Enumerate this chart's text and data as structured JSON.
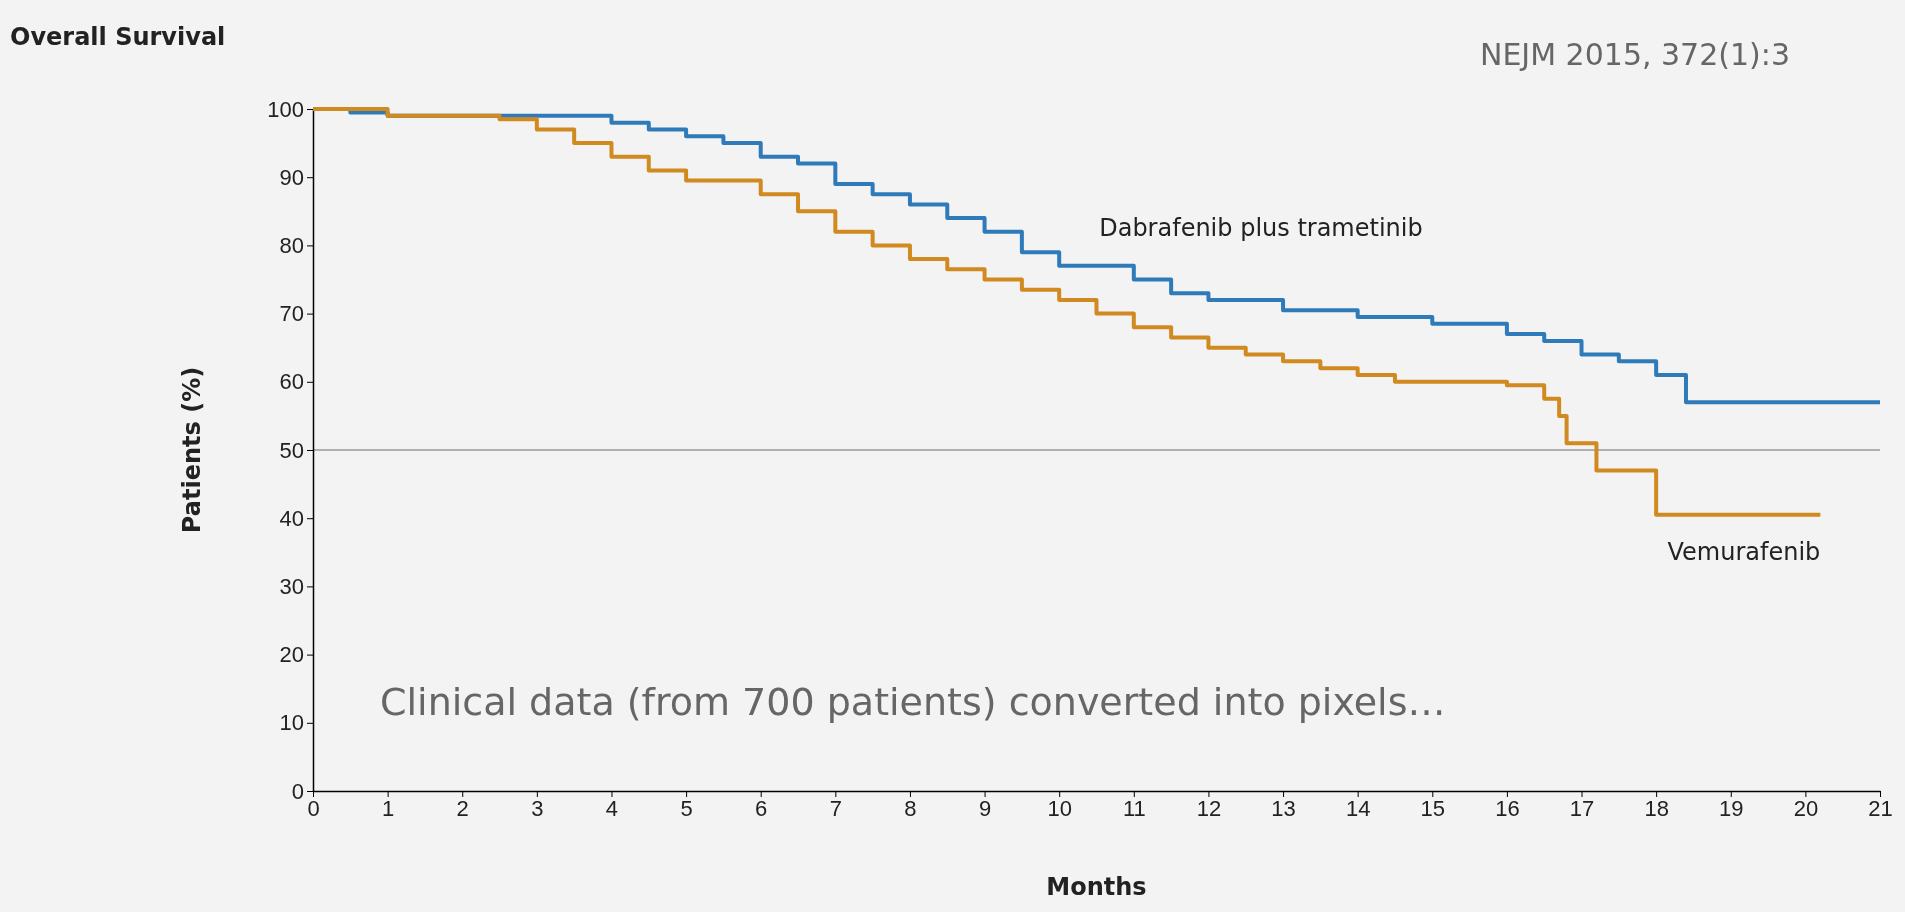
{
  "chart_data": {
    "type": "step",
    "title": "Overall Survival",
    "xlabel": "Months",
    "ylabel": "Patients (%)",
    "xlim": [
      0,
      21
    ],
    "xticks": [
      0,
      1,
      2,
      3,
      4,
      5,
      6,
      7,
      8,
      9,
      10,
      11,
      12,
      13,
      14,
      15,
      16,
      17,
      18,
      19,
      20,
      21
    ],
    "ylim": [
      0,
      100
    ],
    "yticks": [
      0,
      10,
      20,
      30,
      40,
      50,
      60,
      70,
      80,
      90,
      100
    ],
    "series": [
      {
        "name": "Dabrafenib plus trametinib",
        "color": "#2f7ab9",
        "x": [
          0,
          0.5,
          1,
          3.5,
          4,
          4.5,
          5,
          5.5,
          6,
          6.5,
          7,
          7.5,
          8,
          8.5,
          9,
          9.5,
          10,
          11,
          11.5,
          12,
          13,
          14,
          15,
          16,
          16.5,
          17,
          17.5,
          18,
          18.4,
          21
        ],
        "values": [
          100,
          99.5,
          99,
          99,
          98,
          97,
          96,
          95,
          93,
          92,
          89,
          87.5,
          86,
          84,
          82,
          79,
          77,
          75,
          73,
          72,
          70.5,
          69.5,
          68.5,
          67,
          66,
          64,
          63,
          61,
          57,
          57
        ]
      },
      {
        "name": "Vemurafenib",
        "color": "#d08a1f",
        "x": [
          0,
          1,
          2.5,
          3,
          3.5,
          4,
          4.5,
          5,
          6,
          6.5,
          7,
          7.5,
          8,
          8.5,
          9,
          9.5,
          10,
          10.5,
          11,
          11.5,
          12,
          12.5,
          13,
          13.5,
          14,
          14.5,
          16,
          16.5,
          16.7,
          16.8,
          17.2,
          18,
          20.2
        ],
        "values": [
          100,
          99,
          98.5,
          97,
          95,
          93,
          91,
          89.5,
          87.5,
          85,
          82,
          80,
          78,
          76.5,
          75,
          73.5,
          72,
          70,
          68,
          66.5,
          65,
          64,
          63,
          62,
          61,
          60,
          59.5,
          57.5,
          55,
          51,
          47,
          40.5,
          40.5
        ]
      }
    ],
    "ref_lines": [
      {
        "axis": "y",
        "value": 50,
        "color": "#999999"
      }
    ],
    "annotations": [
      "NEJM 2015, 372(1):3",
      "Clinical data (from 700 patients) converted into pixels…"
    ]
  }
}
